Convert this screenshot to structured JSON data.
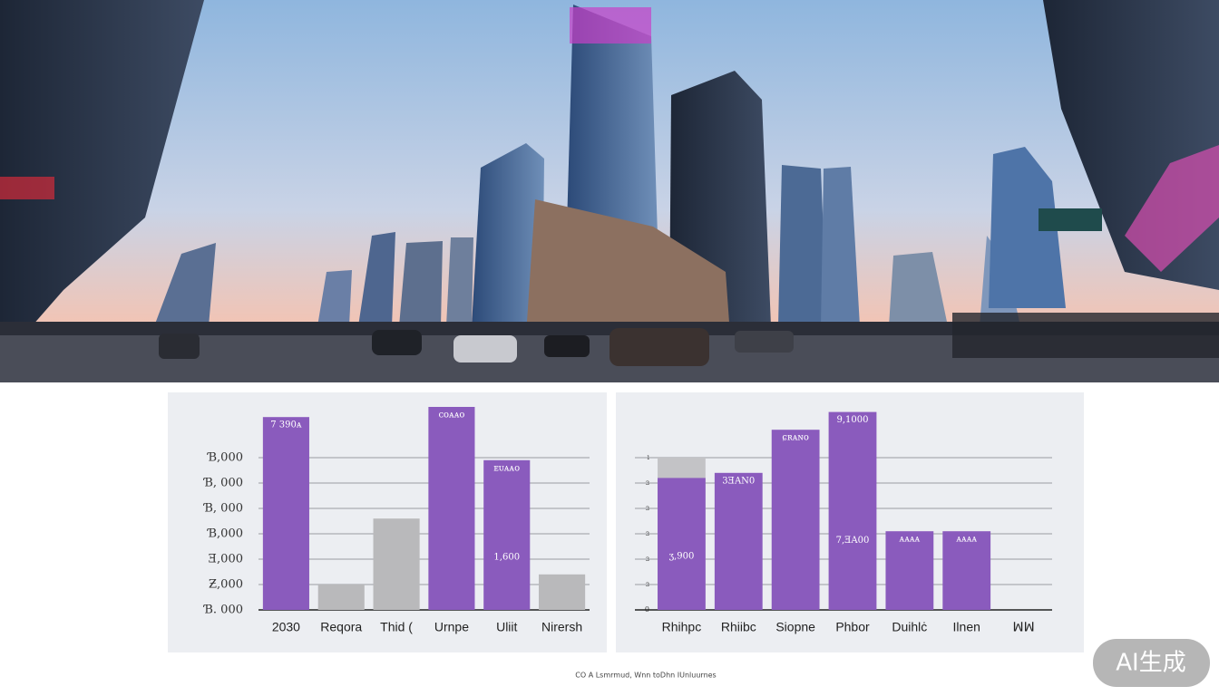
{
  "chart_data": [
    {
      "type": "bar",
      "categories": [
        "2030",
        "Reqora",
        "Thid (",
        "Urnpe",
        "Uliit",
        "Nirersh"
      ],
      "series": [
        {
          "color": "#8a5bbd",
          "values": [
            7.6,
            null,
            null,
            8.0,
            5.9,
            null
          ]
        },
        {
          "color": "#b9b9bb",
          "values": [
            null,
            1.0,
            3.6,
            null,
            null,
            1.4
          ]
        }
      ],
      "bar_labels": [
        "7 390ᴀ",
        null,
        null,
        "ᴄᴏᴀᴀᴏ",
        "ᴇᴜᴀᴀᴏ",
        null
      ],
      "inner_labels": [
        null,
        null,
        null,
        null,
        "1,600",
        null
      ],
      "ylim": [
        0,
        8
      ],
      "yticks": [
        {
          "value": 0,
          "label": "Ɓ. 000"
        },
        {
          "value": 1,
          "label": "Ƶ,000"
        },
        {
          "value": 2,
          "label": "Ǝ,000"
        },
        {
          "value": 3,
          "label": "Ɓ,000"
        },
        {
          "value": 4,
          "label": "Ɓ, 000"
        },
        {
          "value": 5,
          "label": "Ɓ, 000"
        },
        {
          "value": 6,
          "label": "Ɓ,000"
        }
      ],
      "grid": true
    },
    {
      "type": "bar",
      "categories": [
        "Rhihpc",
        "Rhiibc",
        "Siopne",
        "Phbor",
        "Duihlċ",
        "Ilnen",
        "ꟽꟽ"
      ],
      "series": [
        {
          "color": "#c3c3c6",
          "values": [
            6.0,
            null,
            null,
            null,
            null,
            null,
            null
          ]
        },
        {
          "color": "#8a5bbd",
          "values": [
            5.2,
            5.4,
            7.1,
            7.8,
            3.1,
            3.1,
            null
          ]
        }
      ],
      "bar_labels": [
        null,
        "3ƎAN0",
        "ɕʀᴀɴo",
        "9,1000",
        "ᴀᴀᴀᴀ",
        "ᴀᴀᴀᴀ",
        null
      ],
      "inner_labels": [
        "ʒ,900",
        null,
        null,
        "7,ƎA00",
        null,
        null,
        null
      ],
      "ylim": [
        0,
        8
      ],
      "yticks": [
        0,
        {
          "value": 1,
          "label": "ɜ"
        },
        {
          "value": 2,
          "label": "ɜ"
        },
        {
          "value": 3,
          "label": "ɜ"
        },
        {
          "value": 4,
          "label": "ɜ"
        },
        {
          "value": 5,
          "label": "ɜ"
        },
        {
          "value": 6,
          "label": "ı"
        }
      ],
      "grid": true
    }
  ],
  "footer": {
    "caption": "CO A Lsmrmud, Wnn toDhn IUnluurnes",
    "badge": "AI生成"
  }
}
